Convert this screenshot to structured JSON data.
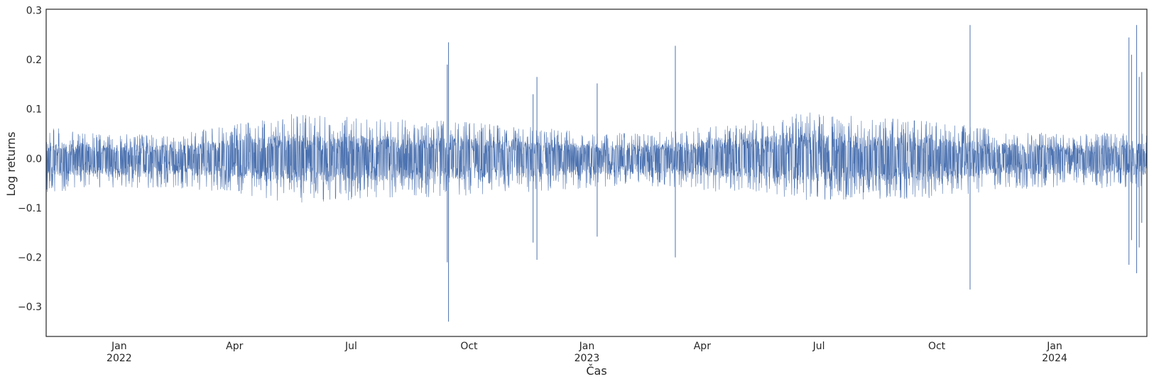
{
  "chart_data": {
    "type": "line",
    "title": "",
    "xlabel": "Čas",
    "ylabel": "Log returns",
    "grid": false,
    "legend": "none",
    "line_color": "#4c72b0",
    "xlim": [
      "2021-11-05",
      "2024-03-13"
    ],
    "ylim": [
      -0.36,
      0.302
    ],
    "y_ticks": [
      {
        "value": 0.3,
        "label": "0.3"
      },
      {
        "value": 0.2,
        "label": "0.2"
      },
      {
        "value": 0.1,
        "label": "0.1"
      },
      {
        "value": 0.0,
        "label": "0.0"
      },
      {
        "value": -0.1,
        "label": "−0.1"
      },
      {
        "value": -0.2,
        "label": "−0.2"
      },
      {
        "value": -0.3,
        "label": "−0.3"
      }
    ],
    "x_ticks": [
      {
        "date": "2022-01-01",
        "label": "Jan",
        "sublabel": "2022"
      },
      {
        "date": "2022-04-01",
        "label": "Apr",
        "sublabel": ""
      },
      {
        "date": "2022-07-01",
        "label": "Jul",
        "sublabel": ""
      },
      {
        "date": "2022-10-01",
        "label": "Oct",
        "sublabel": ""
      },
      {
        "date": "2023-01-01",
        "label": "Jan",
        "sublabel": "2023"
      },
      {
        "date": "2023-04-01",
        "label": "Apr",
        "sublabel": ""
      },
      {
        "date": "2023-07-01",
        "label": "Jul",
        "sublabel": ""
      },
      {
        "date": "2023-10-01",
        "label": "Oct",
        "sublabel": ""
      },
      {
        "date": "2024-01-01",
        "label": "Jan",
        "sublabel": "2024"
      }
    ],
    "series": [
      {
        "values_description_envelope": [
          {
            "date": "2021-11-05",
            "high": 0.065,
            "low": -0.075
          },
          {
            "date": "2021-12-01",
            "high": 0.055,
            "low": -0.065
          },
          {
            "date": "2022-01-01",
            "high": 0.05,
            "low": -0.06
          },
          {
            "date": "2022-02-15",
            "high": 0.05,
            "low": -0.06
          },
          {
            "date": "2022-04-01",
            "high": 0.07,
            "low": -0.07
          },
          {
            "date": "2022-05-15",
            "high": 0.09,
            "low": -0.09
          },
          {
            "date": "2022-07-01",
            "high": 0.085,
            "low": -0.085
          },
          {
            "date": "2022-08-15",
            "high": 0.08,
            "low": -0.08
          },
          {
            "date": "2022-10-01",
            "high": 0.075,
            "low": -0.075
          },
          {
            "date": "2022-11-15",
            "high": 0.065,
            "low": -0.07
          },
          {
            "date": "2023-01-01",
            "high": 0.055,
            "low": -0.06
          },
          {
            "date": "2023-02-15",
            "high": 0.05,
            "low": -0.055
          },
          {
            "date": "2023-04-01",
            "high": 0.065,
            "low": -0.065
          },
          {
            "date": "2023-05-15",
            "high": 0.08,
            "low": -0.075
          },
          {
            "date": "2023-06-20",
            "high": 0.095,
            "low": -0.085
          },
          {
            "date": "2023-08-01",
            "high": 0.085,
            "low": -0.085
          },
          {
            "date": "2023-10-01",
            "high": 0.075,
            "low": -0.08
          },
          {
            "date": "2023-11-15",
            "high": 0.06,
            "low": -0.065
          },
          {
            "date": "2024-01-01",
            "high": 0.05,
            "low": -0.06
          },
          {
            "date": "2024-03-13",
            "high": 0.055,
            "low": -0.06
          }
        ],
        "spikes": [
          {
            "date": "2022-09-15",
            "high": 0.235,
            "low": -0.33
          },
          {
            "date": "2022-09-14",
            "high": 0.19,
            "low": -0.21
          },
          {
            "date": "2022-11-20",
            "high": 0.13,
            "low": -0.17
          },
          {
            "date": "2022-11-23",
            "high": 0.165,
            "low": -0.205
          },
          {
            "date": "2023-01-09",
            "high": 0.152,
            "low": -0.158
          },
          {
            "date": "2023-03-11",
            "high": 0.228,
            "low": -0.2
          },
          {
            "date": "2023-10-27",
            "high": 0.27,
            "low": -0.265
          },
          {
            "date": "2024-02-28",
            "high": 0.245,
            "low": -0.215
          },
          {
            "date": "2024-03-01",
            "high": 0.21,
            "low": -0.165
          },
          {
            "date": "2024-03-05",
            "high": 0.27,
            "low": -0.232
          },
          {
            "date": "2024-03-07",
            "high": 0.165,
            "low": -0.18
          },
          {
            "date": "2024-03-09",
            "high": 0.175,
            "low": -0.13
          }
        ]
      }
    ]
  }
}
